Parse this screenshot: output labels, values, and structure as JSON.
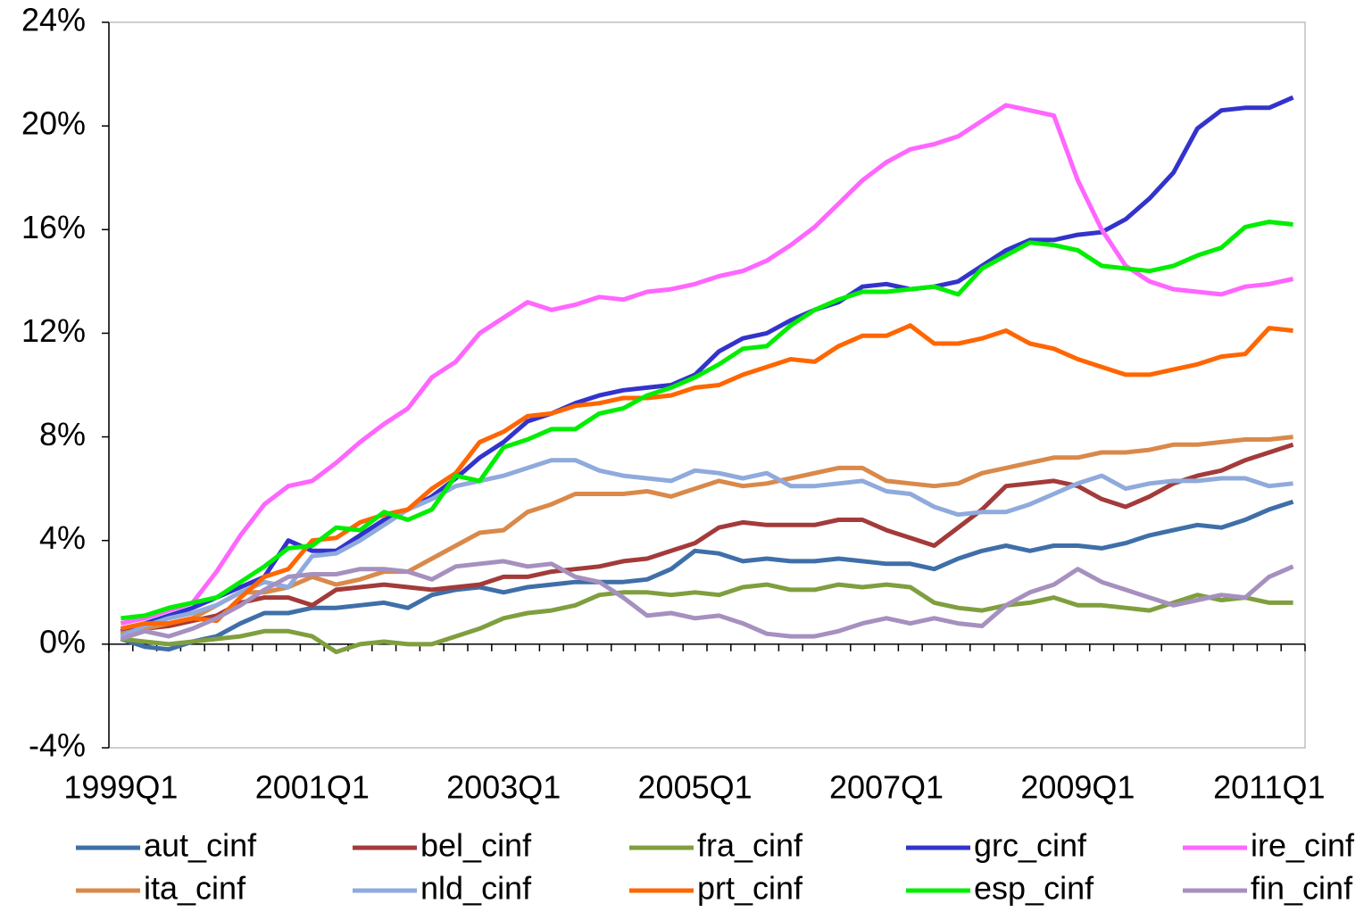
{
  "chart_data": {
    "type": "line",
    "categories": [
      "1999Q1",
      null,
      null,
      null,
      null,
      null,
      null,
      null,
      "2001Q1",
      null,
      null,
      null,
      null,
      null,
      null,
      null,
      "2003Q1",
      null,
      null,
      null,
      null,
      null,
      null,
      null,
      "2005Q1",
      null,
      null,
      null,
      null,
      null,
      null,
      null,
      "2007Q1",
      null,
      null,
      null,
      null,
      null,
      null,
      null,
      "2009Q1",
      null,
      null,
      null,
      null,
      null,
      null,
      null,
      "2011Q1",
      null
    ],
    "ylim": [
      -4,
      24
    ],
    "yticks": [
      {
        "value": -4,
        "label": "-4%"
      },
      {
        "value": 0,
        "label": "0%"
      },
      {
        "value": 4,
        "label": "4%"
      },
      {
        "value": 8,
        "label": "8%"
      },
      {
        "value": 12,
        "label": "12%"
      },
      {
        "value": 16,
        "label": "16%"
      },
      {
        "value": 20,
        "label": "20%"
      },
      {
        "value": 24,
        "label": "24%"
      }
    ],
    "grid": false,
    "legend": "bottom",
    "series": [
      {
        "name": "aut_cinf",
        "color": "#3f6fa8",
        "values": [
          0.2,
          -0.1,
          -0.2,
          0.1,
          0.3,
          0.8,
          1.2,
          1.2,
          1.4,
          1.4,
          1.5,
          1.6,
          1.4,
          1.9,
          2.1,
          2.2,
          2.0,
          2.2,
          2.3,
          2.4,
          2.4,
          2.4,
          2.5,
          2.9,
          3.6,
          3.5,
          3.2,
          3.3,
          3.2,
          3.2,
          3.3,
          3.2,
          3.1,
          3.1,
          2.9,
          3.3,
          3.6,
          3.8,
          3.6,
          3.8,
          3.8,
          3.7,
          3.9,
          4.2,
          4.4,
          4.6,
          4.5,
          4.8,
          5.2,
          5.5
        ]
      },
      {
        "name": "bel_cinf",
        "color": "#a23b3a",
        "values": [
          0.4,
          0.6,
          0.7,
          0.9,
          1.1,
          1.6,
          1.8,
          1.8,
          1.5,
          2.1,
          2.2,
          2.3,
          2.2,
          2.1,
          2.2,
          2.3,
          2.6,
          2.6,
          2.8,
          2.9,
          3.0,
          3.2,
          3.3,
          3.6,
          3.9,
          4.5,
          4.7,
          4.6,
          4.6,
          4.6,
          4.8,
          4.8,
          4.4,
          4.1,
          3.8,
          4.5,
          5.2,
          6.1,
          6.2,
          6.3,
          6.1,
          5.6,
          5.3,
          5.7,
          6.2,
          6.5,
          6.7,
          7.1,
          7.4,
          7.7
        ]
      },
      {
        "name": "fra_cinf",
        "color": "#7f9f3f",
        "values": [
          0.2,
          0.1,
          0.0,
          0.1,
          0.2,
          0.3,
          0.5,
          0.5,
          0.3,
          -0.3,
          0.0,
          0.1,
          0.0,
          0.0,
          0.3,
          0.6,
          1.0,
          1.2,
          1.3,
          1.5,
          1.9,
          2.0,
          2.0,
          1.9,
          2.0,
          1.9,
          2.2,
          2.3,
          2.1,
          2.1,
          2.3,
          2.2,
          2.3,
          2.2,
          1.6,
          1.4,
          1.3,
          1.5,
          1.6,
          1.8,
          1.5,
          1.5,
          1.4,
          1.3,
          1.6,
          1.9,
          1.7,
          1.8,
          1.6,
          1.6
        ]
      },
      {
        "name": "grc_cinf",
        "color": "#3333cc",
        "values": [
          0.5,
          0.8,
          1.1,
          1.4,
          1.8,
          2.2,
          2.6,
          4.0,
          3.6,
          3.6,
          4.2,
          4.8,
          5.2,
          5.7,
          6.4,
          7.2,
          7.8,
          8.6,
          8.9,
          9.3,
          9.6,
          9.8,
          9.9,
          10.0,
          10.4,
          11.3,
          11.8,
          12.0,
          12.5,
          12.9,
          13.2,
          13.8,
          13.9,
          13.7,
          13.8,
          14.0,
          14.6,
          15.2,
          15.6,
          15.6,
          15.8,
          15.9,
          16.4,
          17.2,
          18.2,
          19.9,
          20.6,
          20.7,
          20.7,
          21.1
        ]
      },
      {
        "name": "ire_cinf",
        "color": "#ff66ff",
        "values": [
          0.8,
          1.0,
          1.3,
          1.6,
          2.8,
          4.2,
          5.4,
          6.1,
          6.3,
          7.0,
          7.8,
          8.5,
          9.1,
          10.3,
          10.9,
          12.0,
          12.6,
          13.2,
          12.9,
          13.1,
          13.4,
          13.3,
          13.6,
          13.7,
          13.9,
          14.2,
          14.4,
          14.8,
          15.4,
          16.1,
          17.0,
          17.9,
          18.6,
          19.1,
          19.3,
          19.6,
          20.2,
          20.8,
          20.6,
          20.4,
          17.9,
          16.0,
          14.6,
          14.0,
          13.7,
          13.6,
          13.5,
          13.8,
          13.9,
          14.1
        ]
      },
      {
        "name": "ita_cinf",
        "color": "#d9894a",
        "values": [
          0.4,
          0.6,
          0.8,
          1.0,
          1.5,
          2.0,
          2.0,
          2.2,
          2.6,
          2.3,
          2.5,
          2.8,
          2.8,
          3.3,
          3.8,
          4.3,
          4.4,
          5.1,
          5.4,
          5.8,
          5.8,
          5.8,
          5.9,
          5.7,
          6.0,
          6.3,
          6.1,
          6.2,
          6.4,
          6.6,
          6.8,
          6.8,
          6.3,
          6.2,
          6.1,
          6.2,
          6.6,
          6.8,
          7.0,
          7.2,
          7.2,
          7.4,
          7.4,
          7.5,
          7.7,
          7.7,
          7.8,
          7.9,
          7.9,
          8.0
        ]
      },
      {
        "name": "nld_cinf",
        "color": "#8faadc",
        "values": [
          0.3,
          0.7,
          1.0,
          1.2,
          1.5,
          2.0,
          2.4,
          2.2,
          3.4,
          3.5,
          4.0,
          4.6,
          5.2,
          5.6,
          6.1,
          6.3,
          6.5,
          6.8,
          7.1,
          7.1,
          6.7,
          6.5,
          6.4,
          6.3,
          6.7,
          6.6,
          6.4,
          6.6,
          6.1,
          6.1,
          6.2,
          6.3,
          5.9,
          5.8,
          5.3,
          5.0,
          5.1,
          5.1,
          5.4,
          5.8,
          6.2,
          6.5,
          6.0,
          6.2,
          6.3,
          6.3,
          6.4,
          6.4,
          6.1,
          6.2
        ]
      },
      {
        "name": "prt_cinf",
        "color": "#ff6600",
        "values": [
          0.6,
          0.8,
          0.8,
          1.0,
          0.9,
          1.8,
          2.6,
          2.9,
          4.0,
          4.1,
          4.7,
          5.0,
          5.2,
          6.0,
          6.6,
          7.8,
          8.2,
          8.8,
          8.9,
          9.2,
          9.3,
          9.5,
          9.5,
          9.6,
          9.9,
          10.0,
          10.4,
          10.7,
          11.0,
          10.9,
          11.5,
          11.9,
          11.9,
          12.3,
          11.6,
          11.6,
          11.8,
          12.1,
          11.6,
          11.4,
          11.0,
          10.7,
          10.4,
          10.4,
          10.6,
          10.8,
          11.1,
          11.2,
          12.2,
          12.1
        ]
      },
      {
        "name": "esp_cinf",
        "color": "#00ee00",
        "values": [
          1.0,
          1.1,
          1.4,
          1.6,
          1.8,
          2.4,
          3.0,
          3.7,
          3.8,
          4.5,
          4.4,
          5.1,
          4.8,
          5.2,
          6.5,
          6.3,
          7.6,
          7.9,
          8.3,
          8.3,
          8.9,
          9.1,
          9.6,
          9.9,
          10.3,
          10.8,
          11.4,
          11.5,
          12.3,
          12.9,
          13.3,
          13.6,
          13.6,
          13.7,
          13.8,
          13.5,
          14.5,
          15.0,
          15.5,
          15.4,
          15.2,
          14.6,
          14.5,
          14.4,
          14.6,
          15.0,
          15.3,
          16.1,
          16.3,
          16.2
        ]
      },
      {
        "name": "fin_cinf",
        "color": "#a690bf",
        "values": [
          0.2,
          0.5,
          0.3,
          0.6,
          1.0,
          1.5,
          2.1,
          2.6,
          2.7,
          2.7,
          2.9,
          2.9,
          2.8,
          2.5,
          3.0,
          3.1,
          3.2,
          3.0,
          3.1,
          2.6,
          2.4,
          1.8,
          1.1,
          1.2,
          1.0,
          1.1,
          0.8,
          0.4,
          0.3,
          0.3,
          0.5,
          0.8,
          1.0,
          0.8,
          1.0,
          0.8,
          0.7,
          1.5,
          2.0,
          2.3,
          2.9,
          2.4,
          2.1,
          1.8,
          1.5,
          1.7,
          1.9,
          1.8,
          2.6,
          3.0
        ]
      }
    ]
  }
}
